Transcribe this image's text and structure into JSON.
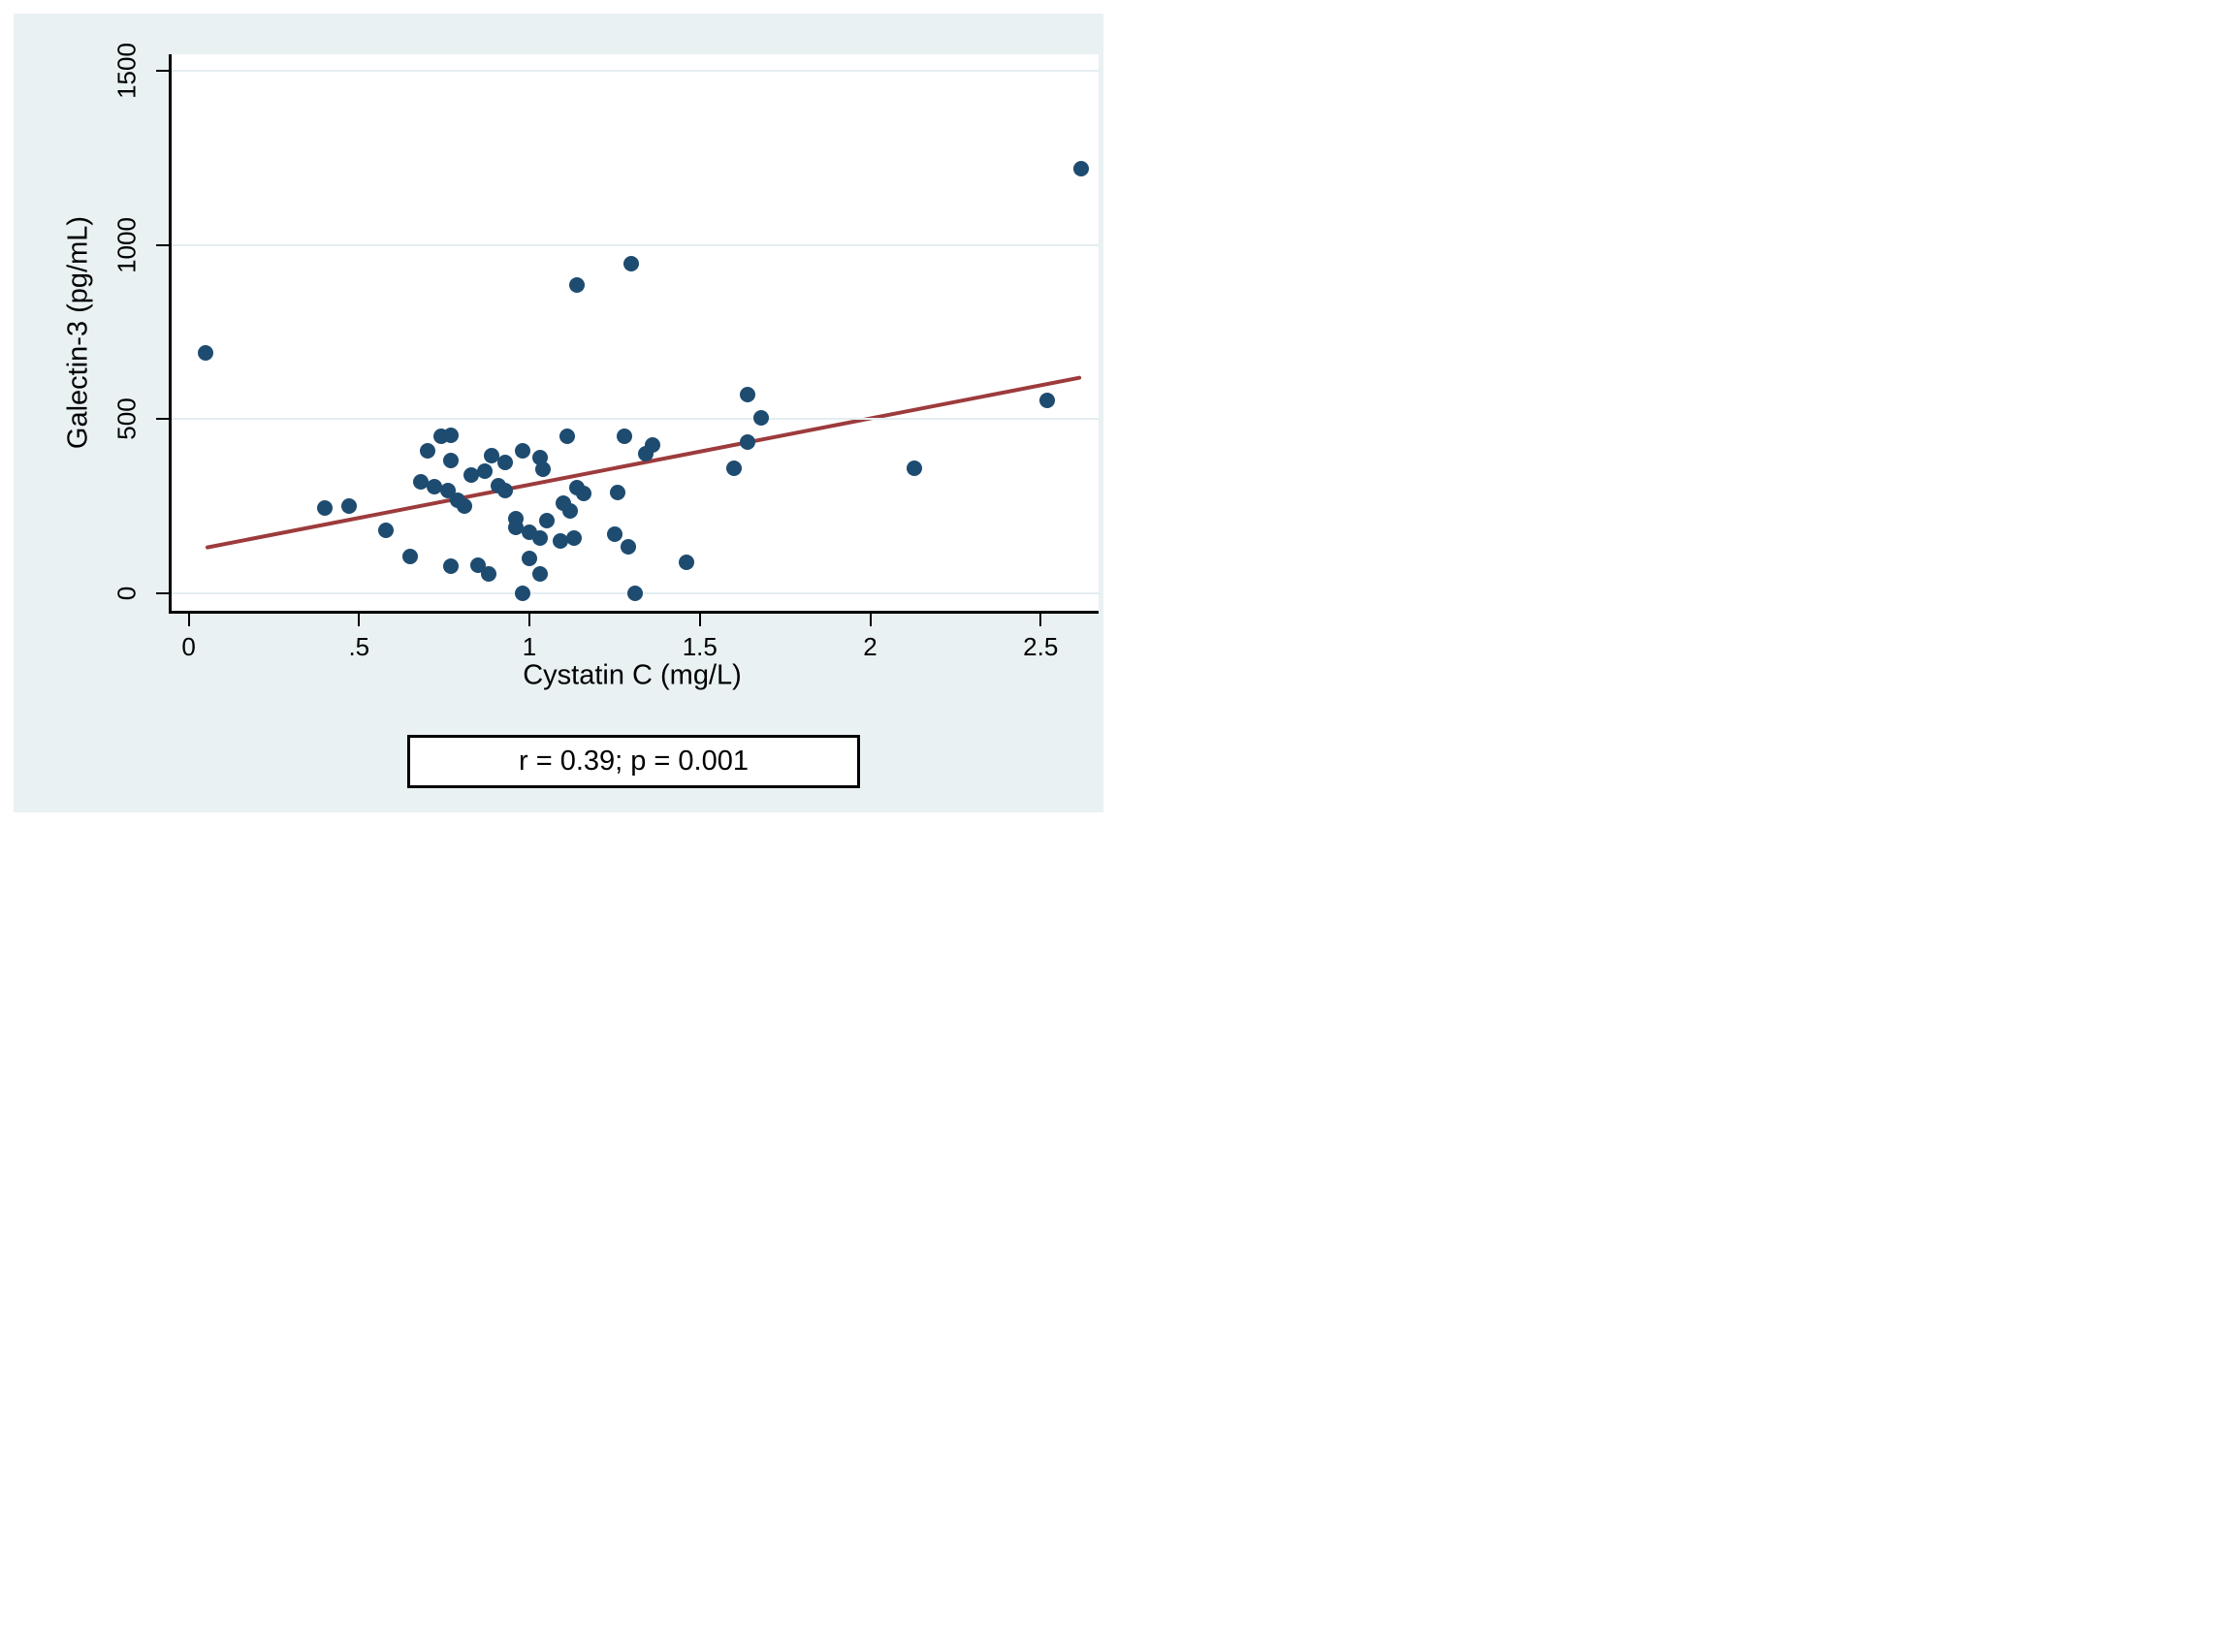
{
  "figure": {
    "y_axis_title": "Galectin-3 (pg/mL)",
    "x_axis_title": "Cystatin C (mg/L)",
    "caption": "r = 0.39; p = 0.001"
  },
  "colors": {
    "canvas_background": "#eaf1f3",
    "plot_background": "#ffffff",
    "gridline": "#e3edf1",
    "marker": "#1e4b70",
    "fit_line": "#9d3b3c",
    "axis": "#000000"
  },
  "chart_data": {
    "type": "scatter",
    "title": "",
    "xlabel": "Cystatin C (mg/L)",
    "ylabel": "Galectin-3 (pg/mL)",
    "annotation": "r = 0.39; p = 0.001",
    "grid": "horizontal-only",
    "legend": "none",
    "xlim": [
      -0.05,
      2.67
    ],
    "ylim": [
      -50,
      1547
    ],
    "x_ticks": [
      "0",
      ".5",
      "1",
      "1.5",
      "2",
      "2.5"
    ],
    "x_tick_values": [
      0,
      0.5,
      1,
      1.5,
      2,
      2.5
    ],
    "y_ticks": [
      "0",
      "500",
      "1000",
      "1500"
    ],
    "y_tick_values": [
      0,
      500,
      1000,
      1500
    ],
    "points": [
      [
        0.05,
        690
      ],
      [
        0.4,
        245
      ],
      [
        0.47,
        250
      ],
      [
        0.58,
        180
      ],
      [
        0.65,
        107
      ],
      [
        0.68,
        320
      ],
      [
        0.7,
        410
      ],
      [
        0.72,
        305
      ],
      [
        0.74,
        450
      ],
      [
        0.76,
        295
      ],
      [
        0.77,
        453
      ],
      [
        0.77,
        380
      ],
      [
        0.77,
        77
      ],
      [
        0.79,
        268
      ],
      [
        0.81,
        250
      ],
      [
        0.83,
        340
      ],
      [
        0.85,
        80
      ],
      [
        0.87,
        350
      ],
      [
        0.88,
        55
      ],
      [
        0.89,
        395
      ],
      [
        0.91,
        310
      ],
      [
        0.93,
        375
      ],
      [
        0.93,
        295
      ],
      [
        0.96,
        215
      ],
      [
        0.96,
        190
      ],
      [
        0.98,
        410
      ],
      [
        0.98,
        0
      ],
      [
        1.0,
        175
      ],
      [
        1.0,
        100
      ],
      [
        1.03,
        390
      ],
      [
        1.03,
        160
      ],
      [
        1.03,
        55
      ],
      [
        1.04,
        355
      ],
      [
        1.05,
        210
      ],
      [
        1.09,
        150
      ],
      [
        1.1,
        258
      ],
      [
        1.11,
        450
      ],
      [
        1.12,
        237
      ],
      [
        1.13,
        160
      ],
      [
        1.14,
        304
      ],
      [
        1.16,
        286
      ],
      [
        1.14,
        885
      ],
      [
        1.3,
        945
      ],
      [
        1.25,
        170
      ],
      [
        1.26,
        290
      ],
      [
        1.28,
        450
      ],
      [
        1.29,
        135
      ],
      [
        1.31,
        0
      ],
      [
        1.34,
        400
      ],
      [
        1.36,
        425
      ],
      [
        1.46,
        90
      ],
      [
        1.6,
        360
      ],
      [
        1.64,
        570
      ],
      [
        1.64,
        435
      ],
      [
        1.68,
        505
      ],
      [
        2.13,
        360
      ],
      [
        2.52,
        553
      ],
      [
        2.62,
        1220
      ]
    ],
    "fit_line": {
      "x1": 0.05,
      "y1": 131,
      "x2": 2.62,
      "y2": 620
    }
  }
}
